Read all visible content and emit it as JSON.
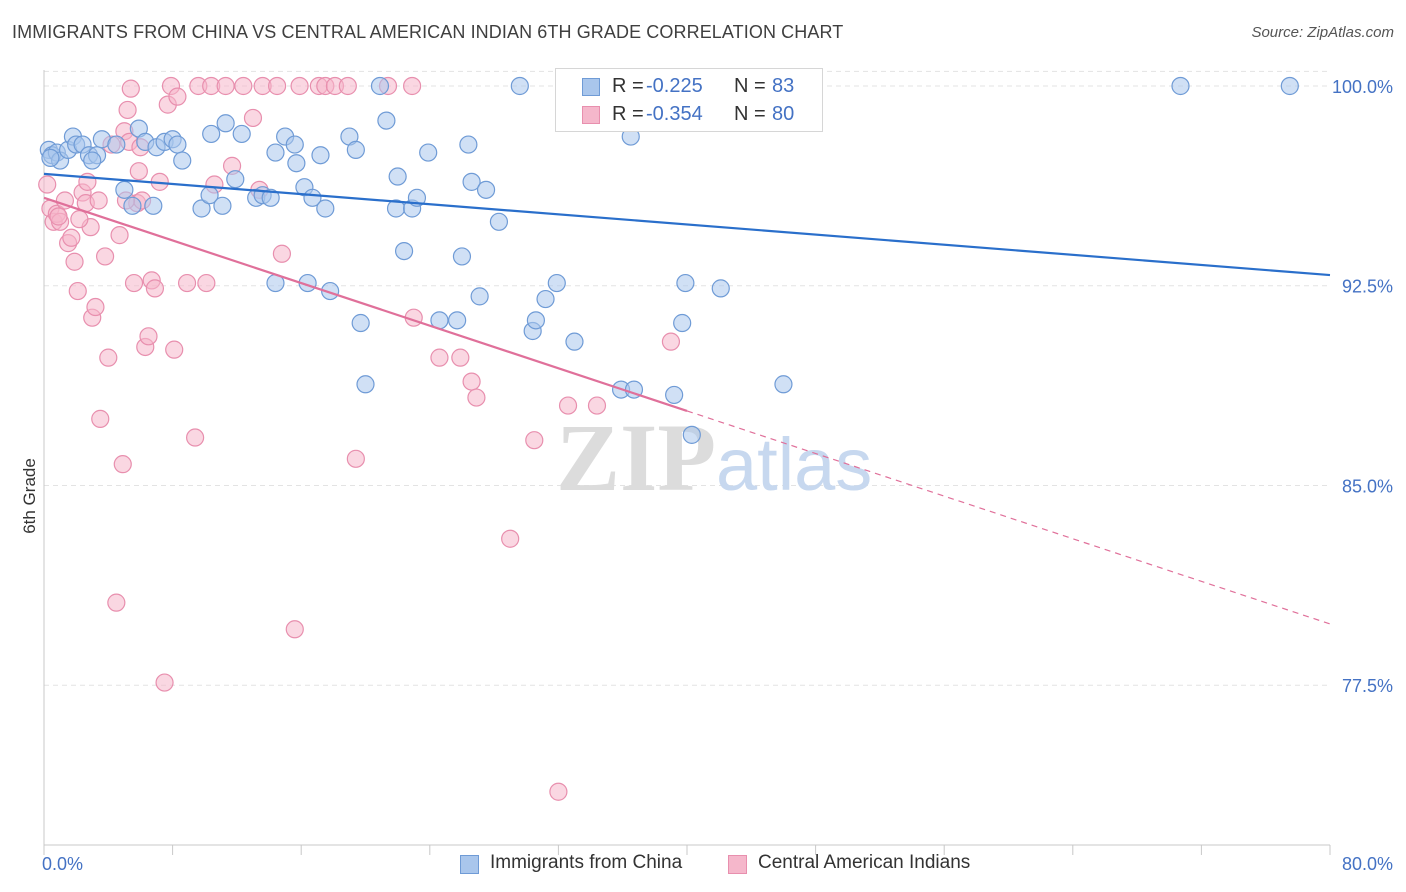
{
  "title": "IMMIGRANTS FROM CHINA VS CENTRAL AMERICAN INDIAN 6TH GRADE CORRELATION CHART",
  "source": "Source: ZipAtlas.com",
  "watermark": {
    "zip": "ZIP",
    "atlas": "atlas"
  },
  "colors": {
    "blue_fill": "#a9c6ec",
    "blue_stroke": "#6f9bd6",
    "blue_line": "#2a6fcb",
    "pink_fill": "#f5b7cb",
    "pink_stroke": "#e88fae",
    "pink_line": "#e0709a",
    "axis_text": "#4472c4",
    "grid": "#e3e3e3"
  },
  "legend": {
    "rows": [
      {
        "r_label": "R =",
        "r_value": "-0.225",
        "n_label": "N =",
        "n_value": "83"
      },
      {
        "r_label": "R =",
        "r_value": "-0.354",
        "n_label": "N =",
        "n_value": "80"
      }
    ]
  },
  "bottom_legend": [
    "Immigrants from China",
    "Central American Indians"
  ],
  "chart_data": {
    "type": "scatter",
    "title": "IMMIGRANTS FROM CHINA VS CENTRAL AMERICAN INDIAN 6TH GRADE CORRELATION CHART",
    "xlabel": "",
    "ylabel": "6th Grade",
    "xlim": [
      0,
      80
    ],
    "ylim": [
      71.5,
      100.6
    ],
    "x_tick_labels": [
      "0.0%",
      "80.0%"
    ],
    "y_ticks": [
      77.5,
      85.0,
      92.5,
      100.0
    ],
    "y_tick_labels": [
      "77.5%",
      "85.0%",
      "92.5%",
      "100.0%"
    ],
    "grid": true,
    "legend_position": "top-center",
    "series": [
      {
        "name": "Immigrants from China",
        "r": -0.225,
        "n": 83,
        "trend": {
          "x0": 0,
          "y0": 96.7,
          "x1": 80,
          "y1": 92.9
        },
        "points": [
          [
            0.3,
            97.6
          ],
          [
            0.5,
            97.4
          ],
          [
            0.8,
            97.5
          ],
          [
            1.0,
            97.2
          ],
          [
            1.5,
            97.6
          ],
          [
            1.8,
            98.1
          ],
          [
            2.0,
            97.8
          ],
          [
            2.4,
            97.8
          ],
          [
            2.8,
            97.4
          ],
          [
            3.3,
            97.4
          ],
          [
            3.6,
            98.0
          ],
          [
            4.5,
            97.8
          ],
          [
            5.0,
            96.1
          ],
          [
            5.5,
            95.5
          ],
          [
            5.9,
            98.4
          ],
          [
            6.3,
            97.9
          ],
          [
            6.8,
            95.5
          ],
          [
            7.0,
            97.7
          ],
          [
            7.5,
            97.9
          ],
          [
            8.0,
            98.0
          ],
          [
            8.3,
            97.8
          ],
          [
            8.6,
            97.2
          ],
          [
            9.8,
            95.4
          ],
          [
            10.3,
            95.9
          ],
          [
            10.4,
            98.2
          ],
          [
            11.1,
            95.5
          ],
          [
            11.3,
            98.6
          ],
          [
            11.9,
            96.5
          ],
          [
            12.3,
            98.2
          ],
          [
            13.2,
            95.8
          ],
          [
            13.6,
            95.9
          ],
          [
            14.1,
            95.8
          ],
          [
            14.4,
            97.5
          ],
          [
            14.4,
            92.6
          ],
          [
            15.0,
            98.1
          ],
          [
            15.6,
            97.8
          ],
          [
            15.7,
            97.1
          ],
          [
            16.2,
            96.2
          ],
          [
            16.4,
            92.6
          ],
          [
            16.7,
            95.8
          ],
          [
            17.2,
            97.4
          ],
          [
            17.5,
            95.4
          ],
          [
            17.8,
            92.3
          ],
          [
            19.0,
            98.1
          ],
          [
            19.4,
            97.6
          ],
          [
            19.7,
            91.1
          ],
          [
            20.0,
            88.8
          ],
          [
            20.9,
            100.0
          ],
          [
            21.3,
            98.7
          ],
          [
            21.9,
            95.4
          ],
          [
            22.0,
            96.6
          ],
          [
            22.4,
            93.8
          ],
          [
            22.9,
            95.4
          ],
          [
            23.2,
            95.8
          ],
          [
            23.9,
            97.5
          ],
          [
            24.6,
            91.2
          ],
          [
            25.7,
            91.2
          ],
          [
            26.0,
            93.6
          ],
          [
            26.4,
            97.8
          ],
          [
            26.6,
            96.4
          ],
          [
            27.1,
            92.1
          ],
          [
            27.5,
            96.1
          ],
          [
            28.3,
            94.9
          ],
          [
            29.6,
            100.0
          ],
          [
            30.4,
            90.8
          ],
          [
            30.6,
            91.2
          ],
          [
            31.2,
            92.0
          ],
          [
            31.9,
            92.6
          ],
          [
            33.0,
            90.4
          ],
          [
            35.9,
            88.6
          ],
          [
            36.5,
            98.1
          ],
          [
            36.7,
            88.6
          ],
          [
            38.7,
            100.0
          ],
          [
            39.2,
            88.4
          ],
          [
            39.7,
            91.1
          ],
          [
            39.9,
            92.6
          ],
          [
            40.3,
            86.9
          ],
          [
            42.1,
            92.4
          ],
          [
            46.0,
            88.8
          ],
          [
            70.7,
            100.0
          ],
          [
            77.5,
            100.0
          ],
          [
            0.4,
            97.3
          ],
          [
            3.0,
            97.2
          ]
        ]
      },
      {
        "name": "Central American Indians",
        "r": -0.354,
        "n": 80,
        "trend": {
          "x0": 0,
          "y0": 95.8,
          "x1": 40,
          "y1": 87.8,
          "dash_x1": 80,
          "dash_y1": 79.8
        },
        "points": [
          [
            0.2,
            96.3
          ],
          [
            0.4,
            95.4
          ],
          [
            0.6,
            94.9
          ],
          [
            0.8,
            95.2
          ],
          [
            1.0,
            94.9
          ],
          [
            1.3,
            95.7
          ],
          [
            1.5,
            94.1
          ],
          [
            1.7,
            94.3
          ],
          [
            1.9,
            93.4
          ],
          [
            2.1,
            92.3
          ],
          [
            2.4,
            96.0
          ],
          [
            2.6,
            95.6
          ],
          [
            2.7,
            96.4
          ],
          [
            2.9,
            94.7
          ],
          [
            3.0,
            91.3
          ],
          [
            3.2,
            91.7
          ],
          [
            3.4,
            95.7
          ],
          [
            3.5,
            87.5
          ],
          [
            3.8,
            93.6
          ],
          [
            4.0,
            89.8
          ],
          [
            4.2,
            97.8
          ],
          [
            4.5,
            80.6
          ],
          [
            4.7,
            94.4
          ],
          [
            4.9,
            85.8
          ],
          [
            5.0,
            98.3
          ],
          [
            5.2,
            99.1
          ],
          [
            5.3,
            97.9
          ],
          [
            5.4,
            99.9
          ],
          [
            5.6,
            92.6
          ],
          [
            5.8,
            95.6
          ],
          [
            5.9,
            96.8
          ],
          [
            6.0,
            97.7
          ],
          [
            6.1,
            95.7
          ],
          [
            6.3,
            90.2
          ],
          [
            6.5,
            90.6
          ],
          [
            6.7,
            92.7
          ],
          [
            6.9,
            92.4
          ],
          [
            7.2,
            96.4
          ],
          [
            7.5,
            77.6
          ],
          [
            7.7,
            99.3
          ],
          [
            7.9,
            100.0
          ],
          [
            8.1,
            90.1
          ],
          [
            8.3,
            99.6
          ],
          [
            8.9,
            92.6
          ],
          [
            9.4,
            86.8
          ],
          [
            9.6,
            100.0
          ],
          [
            10.1,
            92.6
          ],
          [
            10.4,
            100.0
          ],
          [
            10.6,
            96.3
          ],
          [
            11.3,
            100.0
          ],
          [
            11.7,
            97.0
          ],
          [
            12.4,
            100.0
          ],
          [
            13.0,
            98.8
          ],
          [
            13.4,
            96.1
          ],
          [
            13.6,
            100.0
          ],
          [
            14.5,
            100.0
          ],
          [
            14.8,
            93.7
          ],
          [
            15.6,
            79.6
          ],
          [
            15.9,
            100.0
          ],
          [
            17.1,
            100.0
          ],
          [
            17.5,
            100.0
          ],
          [
            18.1,
            100.0
          ],
          [
            18.9,
            100.0
          ],
          [
            19.4,
            86.0
          ],
          [
            21.4,
            100.0
          ],
          [
            22.9,
            100.0
          ],
          [
            23.0,
            91.3
          ],
          [
            24.6,
            89.8
          ],
          [
            25.9,
            89.8
          ],
          [
            26.6,
            88.9
          ],
          [
            26.9,
            88.3
          ],
          [
            29.0,
            83.0
          ],
          [
            30.5,
            86.7
          ],
          [
            32.0,
            73.5
          ],
          [
            32.6,
            88.0
          ],
          [
            34.4,
            88.0
          ],
          [
            39.0,
            90.4
          ],
          [
            0.9,
            95.1
          ],
          [
            2.2,
            95.0
          ],
          [
            5.1,
            95.7
          ]
        ]
      }
    ]
  }
}
